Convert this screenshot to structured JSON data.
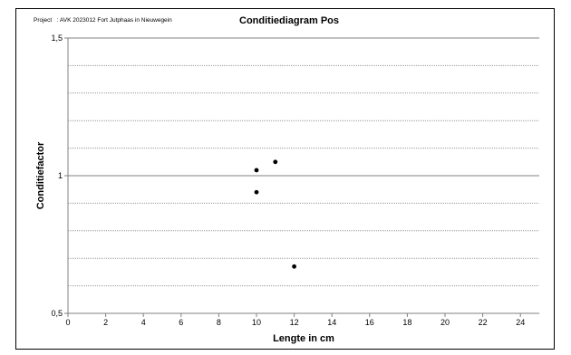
{
  "header": {
    "project_label": "Project",
    "project_value": ": AVK 2023012 Fort Jutphaas in Nieuwegein"
  },
  "chart_data": {
    "type": "scatter",
    "title": "Conditiediagram Pos",
    "xlabel": "Lengte in cm",
    "ylabel": "Conditiefactor",
    "xlim": [
      0,
      25
    ],
    "ylim": [
      0.5,
      1.5
    ],
    "x_ticks": [
      0,
      2,
      4,
      6,
      8,
      10,
      12,
      14,
      16,
      18,
      20,
      22,
      24
    ],
    "y_tick_labels": [
      {
        "value": 0.5,
        "label": "0,5"
      },
      {
        "value": 1.0,
        "label": "1"
      },
      {
        "value": 1.5,
        "label": "1,5"
      }
    ],
    "grid": true,
    "legend": "none",
    "marker_color": "#000000",
    "points": [
      {
        "x": 10,
        "y": 1.02
      },
      {
        "x": 10,
        "y": 0.94
      },
      {
        "x": 11,
        "y": 1.05
      },
      {
        "x": 12,
        "y": 0.67
      }
    ]
  }
}
